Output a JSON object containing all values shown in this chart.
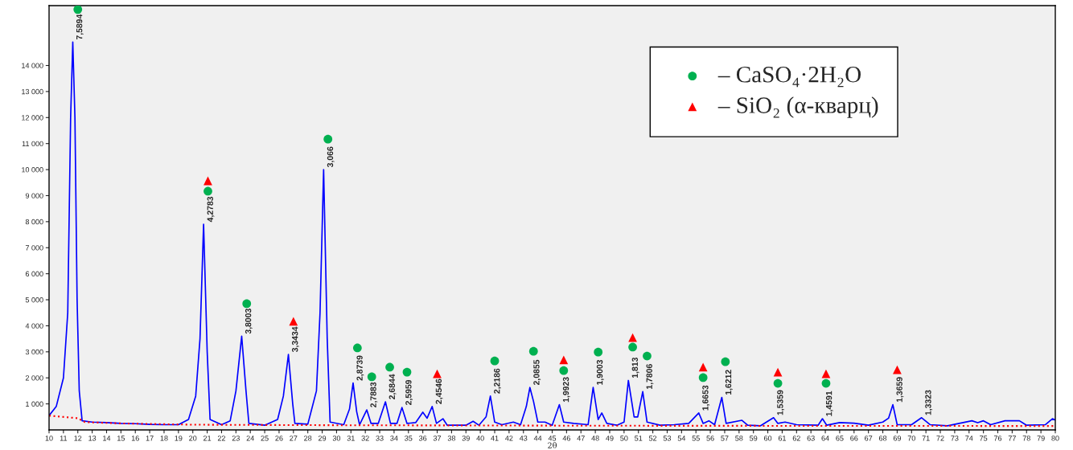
{
  "chart_data": {
    "type": "line",
    "xlabel": "2θ",
    "xlim": [
      10,
      80
    ],
    "ylim": [
      0,
      16300
    ],
    "xticks": [
      10,
      11,
      12,
      13,
      14,
      15,
      16,
      17,
      18,
      19,
      20,
      21,
      22,
      23,
      24,
      25,
      26,
      27,
      28,
      29,
      30,
      31,
      32,
      33,
      34,
      35,
      36,
      37,
      38,
      39,
      40,
      41,
      42,
      43,
      44,
      45,
      46,
      47,
      48,
      49,
      50,
      51,
      52,
      53,
      54,
      55,
      56,
      57,
      58,
      59,
      60,
      61,
      62,
      63,
      64,
      65,
      66,
      67,
      68,
      69,
      70,
      71,
      72,
      73,
      74,
      75,
      76,
      77,
      78,
      79,
      80
    ],
    "yticks": [
      {
        "value": 1000,
        "label": "1 000"
      },
      {
        "value": 2000,
        "label": "2 000"
      },
      {
        "value": 3000,
        "label": "3 000"
      },
      {
        "value": 4000,
        "label": "4 000"
      },
      {
        "value": 5000,
        "label": "5 000"
      },
      {
        "value": 6000,
        "label": "6 000"
      },
      {
        "value": 7000,
        "label": "7 000"
      },
      {
        "value": 8000,
        "label": "8 000"
      },
      {
        "value": 9000,
        "label": "9 000"
      },
      {
        "value": 10000,
        "label": "10 000"
      },
      {
        "value": 11000,
        "label": "11 000"
      },
      {
        "value": 12000,
        "label": "12 000"
      },
      {
        "value": 13000,
        "label": "13 000"
      },
      {
        "value": 14000,
        "label": "14 000"
      }
    ],
    "grid": false,
    "legend": "top right",
    "series": [
      {
        "color": "#0000ff",
        "line_style": "solid",
        "marker": "none",
        "x": [
          10,
          10.5,
          11.0,
          11.3,
          11.5,
          11.65,
          11.8,
          11.95,
          12.1,
          12.3,
          13,
          14,
          15,
          16,
          17,
          18,
          19,
          19.7,
          20.2,
          20.5,
          20.75,
          21.0,
          21.2,
          22,
          22.6,
          23.0,
          23.4,
          23.7,
          23.9,
          25,
          25.9,
          26.3,
          26.65,
          26.95,
          27.1,
          28,
          28.6,
          28.85,
          29.1,
          29.35,
          29.55,
          30.5,
          30.9,
          31.15,
          31.4,
          31.6,
          32.1,
          32.4,
          32.9,
          33.4,
          33.75,
          34.2,
          34.55,
          34.9,
          35.5,
          36.0,
          36.3,
          36.65,
          36.95,
          37.4,
          37.7,
          39,
          39.5,
          39.9,
          40.4,
          40.7,
          41.0,
          41.5,
          42.3,
          42.8,
          43.2,
          43.45,
          43.7,
          44.0,
          44.5,
          45.0,
          45.5,
          45.8,
          46.5,
          47.5,
          47.85,
          48.2,
          48.45,
          48.8,
          49.5,
          50.0,
          50.3,
          50.7,
          50.95,
          51.3,
          51.6,
          52.5,
          53.5,
          54.5,
          55.2,
          55.5,
          55.9,
          56.3,
          56.8,
          57.1,
          58.2,
          58.6,
          59.5,
          60.4,
          60.7,
          61.2,
          62,
          63.5,
          63.8,
          64.1,
          65,
          66,
          67,
          68.0,
          68.4,
          68.7,
          69.0,
          70,
          70.7,
          71.3,
          72.5,
          74.2,
          74.6,
          75,
          75.5,
          76.5,
          77.5,
          78,
          79.3,
          79.8,
          80
        ],
        "values": [
          550,
          900,
          2000,
          4500,
          12000,
          14900,
          12000,
          5000,
          1500,
          350,
          300,
          280,
          250,
          240,
          210,
          200,
          200,
          400,
          1300,
          3500,
          7900,
          3000,
          400,
          200,
          350,
          1500,
          3600,
          1500,
          250,
          180,
          400,
          1300,
          2900,
          1000,
          250,
          220,
          1500,
          4500,
          10000,
          3500,
          300,
          200,
          800,
          1800,
          700,
          200,
          770,
          250,
          250,
          1080,
          250,
          250,
          860,
          250,
          280,
          680,
          450,
          900,
          250,
          430,
          180,
          180,
          330,
          180,
          500,
          1300,
          300,
          200,
          300,
          200,
          900,
          1630,
          1100,
          300,
          300,
          180,
          970,
          300,
          250,
          200,
          1630,
          400,
          650,
          250,
          180,
          300,
          1900,
          500,
          500,
          1470,
          300,
          180,
          200,
          250,
          650,
          250,
          350,
          200,
          1250,
          250,
          370,
          180,
          160,
          470,
          250,
          300,
          200,
          180,
          430,
          180,
          280,
          260,
          180,
          300,
          450,
          970,
          200,
          200,
          470,
          200,
          160,
          350,
          280,
          350,
          200,
          350,
          350,
          180,
          200,
          430,
          380
        ]
      },
      {
        "color": "#ff0000",
        "line_style": "dotted",
        "marker": "none",
        "x": [
          10,
          12,
          12.5,
          15,
          20,
          30,
          50,
          80
        ],
        "values": [
          550,
          450,
          300,
          250,
          200,
          180,
          160,
          150
        ]
      },
      {
        "type": "scatter",
        "name": "– CaSO₄·2H₂O",
        "color": "#00b050",
        "marker": "circle",
        "x": [
          12.0,
          21.05,
          23.75,
          29.4,
          31.45,
          32.45,
          33.7,
          34.9,
          41.0,
          43.7,
          45.8,
          48.2,
          50.6,
          51.6,
          55.5,
          57.05,
          60.7,
          64.05
        ],
        "values": [
          16150,
          9170,
          4850,
          11170,
          3150,
          2040,
          2410,
          2220,
          2650,
          3020,
          2280,
          2990,
          3180,
          2840,
          2010,
          2620,
          1790,
          1790
        ]
      },
      {
        "type": "scatter",
        "name": "– SiO₂ (α-кварц)",
        "color": "#ff0000",
        "marker": "triangle",
        "x": [
          21.05,
          27.0,
          37.0,
          45.8,
          50.6,
          55.5,
          60.7,
          64.05,
          69.0
        ],
        "values": [
          9570,
          4170,
          2160,
          2690,
          3550,
          2410,
          2220,
          2160,
          2310
        ]
      }
    ],
    "annotations": [
      {
        "text": "7,5894",
        "x": 11.65,
        "y": 14900
      },
      {
        "text": "4,2783",
        "x": 20.75,
        "y": 7900
      },
      {
        "text": "3,8003",
        "x": 23.4,
        "y": 3600
      },
      {
        "text": "3,3434",
        "x": 26.65,
        "y": 2900
      },
      {
        "text": "3,066",
        "x": 29.1,
        "y": 10000
      },
      {
        "text": "2,8739",
        "x": 31.15,
        "y": 1800
      },
      {
        "text": "2,7883",
        "x": 32.1,
        "y": 770
      },
      {
        "text": "2,6844",
        "x": 33.4,
        "y": 1080
      },
      {
        "text": "2,5959",
        "x": 34.55,
        "y": 860
      },
      {
        "text": "2,4546",
        "x": 36.65,
        "y": 900
      },
      {
        "text": "2,2186",
        "x": 40.7,
        "y": 1300
      },
      {
        "text": "2,0855",
        "x": 43.45,
        "y": 1630
      },
      {
        "text": "1,9923",
        "x": 45.5,
        "y": 970
      },
      {
        "text": "1,9003",
        "x": 47.85,
        "y": 1630
      },
      {
        "text": "1,813",
        "x": 50.3,
        "y": 1900
      },
      {
        "text": "1,7806",
        "x": 51.3,
        "y": 1470
      },
      {
        "text": "1,6653",
        "x": 55.2,
        "y": 650
      },
      {
        "text": "1,6212",
        "x": 56.8,
        "y": 1250
      },
      {
        "text": "1,5359",
        "x": 60.4,
        "y": 470
      },
      {
        "text": "1,4591",
        "x": 63.8,
        "y": 430
      },
      {
        "text": "1,3659",
        "x": 68.7,
        "y": 970
      },
      {
        "text": "1,3323",
        "x": 70.7,
        "y": 470
      }
    ]
  }
}
